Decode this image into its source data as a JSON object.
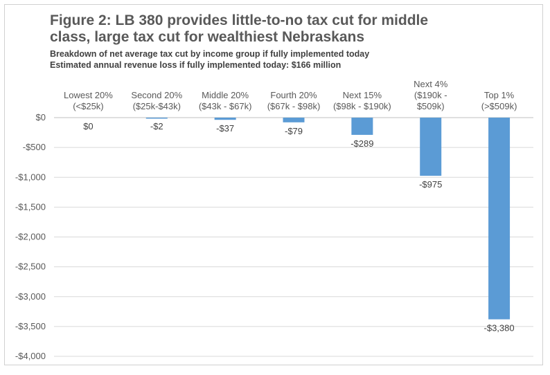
{
  "chart_data": {
    "type": "bar",
    "title_lines": [
      "Figure 2: LB 380 provides little-to-no tax cut for middle",
      "class, large tax cut for wealthiest Nebraskans"
    ],
    "subtitle_lines": [
      "Breakdown of net average tax cut by income group if fully implemented today",
      "Estimated annual revenue loss if fully implemented today: $166 million"
    ],
    "categories": [
      [
        "Lowest 20%",
        "(<$25k)"
      ],
      [
        "Second 20%",
        "($25k-$43k)"
      ],
      [
        "Middle 20%",
        "($43k - $67k)"
      ],
      [
        "Fourth 20%",
        "($67k - $98k)"
      ],
      [
        "Next 15%",
        "($98k - $190k)"
      ],
      [
        "Next 4%",
        "($190k -",
        "$509k)"
      ],
      [
        "Top 1%",
        "(>$509k)"
      ]
    ],
    "values": [
      0,
      -2,
      -37,
      -79,
      -289,
      -975,
      -3380
    ],
    "data_labels": [
      "$0",
      "-$2",
      "-$37",
      "-$79",
      "-$289",
      "-$975",
      "-$3,380"
    ],
    "ylim": [
      -4000,
      0
    ],
    "yticks": [
      0,
      -500,
      -1000,
      -1500,
      -2000,
      -2500,
      -3000,
      -3500,
      -4000
    ],
    "ytick_labels": [
      "$0",
      "-$500",
      "-$1,000",
      "-$1,500",
      "-$2,000",
      "-$2,500",
      "-$3,000",
      "-$3,500",
      "-$4,000"
    ],
    "bar_color": "#5b9bd5",
    "grid": true,
    "legend": "none"
  }
}
